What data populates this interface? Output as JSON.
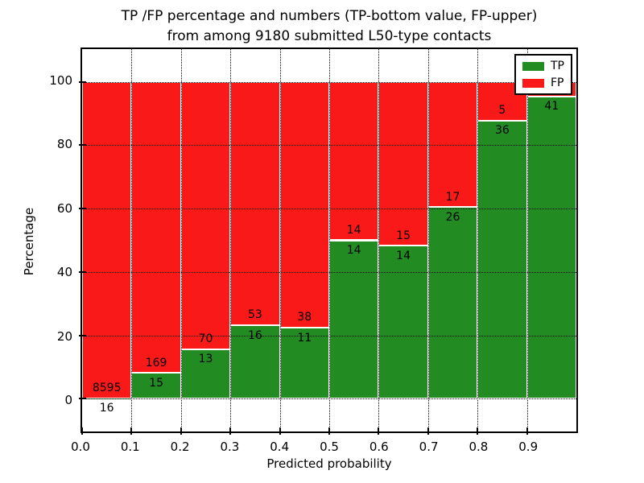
{
  "title": {
    "line1": "TP /FP percentage and numbers (TP-bottom value, FP-upper)",
    "line2": "from among 9180 submitted L50-type contacts"
  },
  "legend": {
    "items": [
      {
        "label": "TP",
        "color": "#228B22"
      },
      {
        "label": "FP",
        "color": "#fa1919"
      }
    ]
  },
  "chart_data": {
    "type": "bar",
    "stacked": true,
    "title": "TP /FP percentage and numbers (TP-bottom value, FP-upper) from among 9180 submitted L50-type contacts",
    "xlabel": "Predicted probability",
    "ylabel": "Percentage",
    "total_submitted": 9180,
    "x_tick_labels": [
      "0.0",
      "0.1",
      "0.2",
      "0.3",
      "0.4",
      "0.5",
      "0.6",
      "0.7",
      "0.8",
      "0.9"
    ],
    "y_ticks": [
      0,
      20,
      40,
      60,
      80,
      100
    ],
    "ylim": [
      -10.3,
      110.3
    ],
    "grid": "dotted",
    "legend_position": "upper right",
    "series": [
      {
        "name": "TP",
        "color": "#228B22"
      },
      {
        "name": "FP",
        "color": "#fa1919"
      }
    ],
    "bins": [
      {
        "range": [
          0.0,
          0.1
        ],
        "tp": 16,
        "fp": 8595,
        "tp_pct": 0.19,
        "tp_label": "16",
        "fp_label": "8595"
      },
      {
        "range": [
          0.1,
          0.2
        ],
        "tp": 15,
        "fp": 169,
        "tp_pct": 8.15,
        "tp_label": "15",
        "fp_label": "169"
      },
      {
        "range": [
          0.2,
          0.3
        ],
        "tp": 13,
        "fp": 70,
        "tp_pct": 15.66,
        "tp_label": "13",
        "fp_label": "70"
      },
      {
        "range": [
          0.3,
          0.4
        ],
        "tp": 16,
        "fp": 53,
        "tp_pct": 23.19,
        "tp_label": "16",
        "fp_label": "53"
      },
      {
        "range": [
          0.4,
          0.5
        ],
        "tp": 11,
        "fp": 38,
        "tp_pct": 22.45,
        "tp_label": "11",
        "fp_label": "38"
      },
      {
        "range": [
          0.5,
          0.6
        ],
        "tp": 14,
        "fp": 14,
        "tp_pct": 50.0,
        "tp_label": "14",
        "fp_label": "14"
      },
      {
        "range": [
          0.6,
          0.7
        ],
        "tp": 14,
        "fp": 15,
        "tp_pct": 48.28,
        "tp_label": "14",
        "fp_label": "15"
      },
      {
        "range": [
          0.7,
          0.8
        ],
        "tp": 26,
        "fp": 17,
        "tp_pct": 60.47,
        "tp_label": "26",
        "fp_label": "17"
      },
      {
        "range": [
          0.8,
          0.9
        ],
        "tp": 36,
        "fp": 5,
        "tp_pct": 87.8,
        "tp_label": "36",
        "fp_label": "5"
      },
      {
        "range": [
          0.9,
          1.0
        ],
        "tp": 41,
        "tp_pct": 95.35,
        "tp_label": "41",
        "fp_label": ""
      }
    ]
  }
}
